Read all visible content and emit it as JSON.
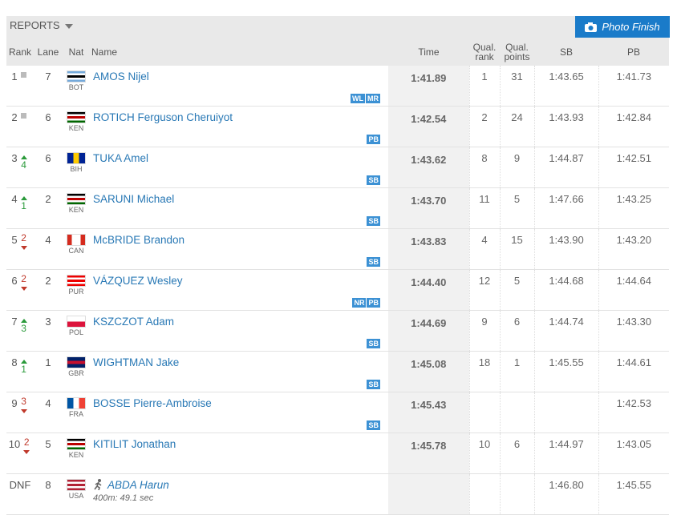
{
  "toolbar": {
    "reports": "REPORTS",
    "photo_finish": "Photo Finish"
  },
  "table": {
    "headers": [
      "Rank",
      "Lane",
      "Nat",
      "Name",
      "Time",
      "Qual. rank",
      "Qual. points",
      "SB",
      "PB"
    ],
    "rows": [
      {
        "rank": "1",
        "trend": "same",
        "move": null,
        "lane": "7",
        "nat": "BOT",
        "flag": {
          "dir": "180deg",
          "colors": [
            "#75aadb",
            "#fff",
            "#000",
            "#fff",
            "#75aadb"
          ]
        },
        "name": "AMOS Nijel",
        "badges": [
          "WL",
          "MR"
        ],
        "time": "1:41.89",
        "qual_rank": "1",
        "qual_points": "31",
        "sb": "1:43.65",
        "pb": "1:41.73"
      },
      {
        "rank": "2",
        "trend": "same",
        "move": null,
        "lane": "6",
        "nat": "KEN",
        "flag": {
          "dir": "180deg",
          "colors": [
            "#000",
            "#fff",
            "#bb0000",
            "#fff",
            "#006600"
          ]
        },
        "name": "ROTICH Ferguson Cheruiyot",
        "badges": [
          "PB"
        ],
        "time": "1:42.54",
        "qual_rank": "2",
        "qual_points": "24",
        "sb": "1:43.93",
        "pb": "1:42.84"
      },
      {
        "rank": "3",
        "trend": "up",
        "move": "4",
        "lane": "6",
        "nat": "BIH",
        "flag": {
          "dir": "90deg",
          "colors": [
            "#002395",
            "#fecb00",
            "#002395"
          ]
        },
        "name": "TUKA Amel",
        "badges": [
          "SB"
        ],
        "time": "1:43.62",
        "qual_rank": "8",
        "qual_points": "9",
        "sb": "1:44.87",
        "pb": "1:42.51"
      },
      {
        "rank": "4",
        "trend": "up",
        "move": "1",
        "lane": "2",
        "nat": "KEN",
        "flag": {
          "dir": "180deg",
          "colors": [
            "#000",
            "#fff",
            "#bb0000",
            "#fff",
            "#006600"
          ]
        },
        "name": "SARUNI Michael",
        "badges": [
          "SB"
        ],
        "time": "1:43.70",
        "qual_rank": "11",
        "qual_points": "5",
        "sb": "1:47.66",
        "pb": "1:43.25"
      },
      {
        "rank": "5",
        "trend": "down",
        "move": "2",
        "lane": "4",
        "nat": "CAN",
        "flag": {
          "dir": "90deg",
          "colors": [
            "#d52b1e",
            "#fff",
            "#fff",
            "#d52b1e"
          ]
        },
        "name": "McBRIDE Brandon",
        "badges": [
          "SB"
        ],
        "time": "1:43.83",
        "qual_rank": "4",
        "qual_points": "15",
        "sb": "1:43.90",
        "pb": "1:43.20"
      },
      {
        "rank": "6",
        "trend": "down",
        "move": "2",
        "lane": "2",
        "nat": "PUR",
        "flag": {
          "dir": "180deg",
          "colors": [
            "#ed0000",
            "#fff",
            "#ed0000",
            "#fff",
            "#ed0000"
          ]
        },
        "name": "VÁZQUEZ Wesley",
        "badges": [
          "NR",
          "PB"
        ],
        "time": "1:44.40",
        "qual_rank": "12",
        "qual_points": "5",
        "sb": "1:44.68",
        "pb": "1:44.64"
      },
      {
        "rank": "7",
        "trend": "up",
        "move": "3",
        "lane": "3",
        "nat": "POL",
        "flag": {
          "dir": "180deg",
          "colors": [
            "#fff",
            "#dc143c"
          ]
        },
        "name": "KSZCZOT Adam",
        "badges": [
          "SB"
        ],
        "time": "1:44.69",
        "qual_rank": "9",
        "qual_points": "6",
        "sb": "1:44.74",
        "pb": "1:43.30"
      },
      {
        "rank": "8",
        "trend": "up",
        "move": "1",
        "lane": "1",
        "nat": "GBR",
        "flag": {
          "dir": "180deg",
          "colors": [
            "#012169",
            "#c8102e",
            "#012169"
          ]
        },
        "name": "WIGHTMAN Jake",
        "badges": [
          "SB"
        ],
        "time": "1:45.08",
        "qual_rank": "18",
        "qual_points": "1",
        "sb": "1:45.55",
        "pb": "1:44.61"
      },
      {
        "rank": "9",
        "trend": "down",
        "move": "3",
        "lane": "4",
        "nat": "FRA",
        "flag": {
          "dir": "90deg",
          "colors": [
            "#0055a4",
            "#fff",
            "#ef4135"
          ]
        },
        "name": "BOSSE Pierre-Ambroise",
        "badges": [
          "SB"
        ],
        "time": "1:45.43",
        "qual_rank": null,
        "qual_points": null,
        "sb": null,
        "pb": "1:42.53"
      },
      {
        "rank": "10",
        "trend": "down",
        "move": "2",
        "lane": "5",
        "nat": "KEN",
        "flag": {
          "dir": "180deg",
          "colors": [
            "#000",
            "#fff",
            "#bb0000",
            "#fff",
            "#006600"
          ]
        },
        "name": "KITILIT Jonathan",
        "badges": [],
        "time": "1:45.78",
        "qual_rank": "10",
        "qual_points": "6",
        "sb": "1:44.97",
        "pb": "1:43.05"
      },
      {
        "rank": "DNF",
        "trend": null,
        "move": null,
        "lane": "8",
        "nat": "USA",
        "flag": {
          "dir": "180deg",
          "colors": [
            "#b22234",
            "#fff",
            "#b22234",
            "#fff",
            "#b22234"
          ]
        },
        "name": "ABDA Harun",
        "note": "400m: 49.1 sec",
        "badges": [],
        "time": null,
        "qual_rank": null,
        "qual_points": null,
        "sb": "1:46.80",
        "pb": "1:45.55"
      }
    ]
  }
}
